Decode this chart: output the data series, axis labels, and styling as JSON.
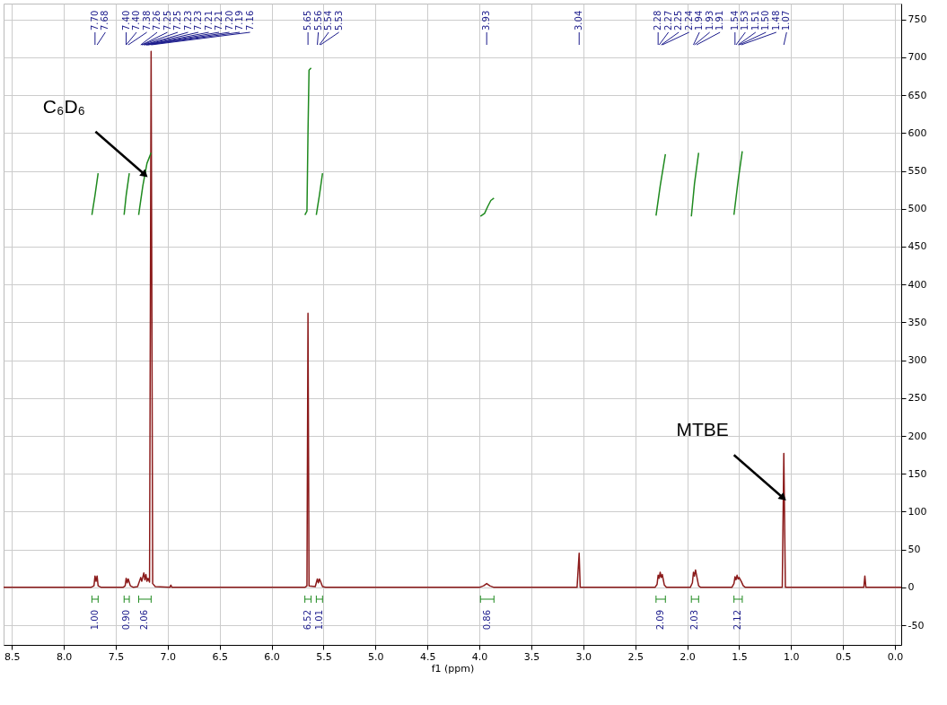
{
  "chart_data": {
    "type": "line",
    "xlabel": "f1 (ppm)",
    "xlim": [
      8.58,
      -0.06
    ],
    "ylim": [
      -76,
      771
    ],
    "xticks": [
      {
        "value": 8.5,
        "label": "8.5"
      },
      {
        "value": 8,
        "label": "8.0"
      },
      {
        "value": 7.5,
        "label": "7.5"
      },
      {
        "value": 7,
        "label": "7.0"
      },
      {
        "value": 6.5,
        "label": "6.5"
      },
      {
        "value": 6,
        "label": "6.0"
      },
      {
        "value": 5.5,
        "label": "5.5"
      },
      {
        "value": 5,
        "label": "5.0"
      },
      {
        "value": 4.5,
        "label": "4.5"
      },
      {
        "value": 4,
        "label": "4.0"
      },
      {
        "value": 3.5,
        "label": "3.5"
      },
      {
        "value": 3,
        "label": "3.0"
      },
      {
        "value": 2.5,
        "label": "2.5"
      },
      {
        "value": 2,
        "label": "2.0"
      },
      {
        "value": 1.5,
        "label": "1.5"
      },
      {
        "value": 1,
        "label": "1.0"
      },
      {
        "value": 0.5,
        "label": "0.5"
      },
      {
        "value": 0,
        "label": "0.0"
      }
    ],
    "yticks": [
      -50,
      0,
      50,
      100,
      150,
      200,
      250,
      300,
      350,
      400,
      450,
      500,
      550,
      600,
      650,
      700,
      750
    ],
    "grid": true,
    "series": [
      {
        "color": "#8b1a1a",
        "x": [
          8.58,
          7.74,
          7.71,
          7.7,
          7.69,
          7.68,
          7.67,
          7.64,
          7.43,
          7.41,
          7.4,
          7.39,
          7.38,
          7.36,
          7.33,
          7.29,
          7.26,
          7.25,
          7.23,
          7.22,
          7.21,
          7.2,
          7.19,
          7.175,
          7.16,
          7.145,
          7.12,
          6.98,
          6.97,
          6.96,
          5.68,
          5.66,
          5.65,
          5.64,
          5.58,
          5.56,
          5.55,
          5.54,
          5.53,
          5.51,
          5.48,
          4.0,
          3.96,
          3.93,
          3.9,
          3.86,
          3.06,
          3.04,
          3.03,
          2.31,
          2.29,
          2.28,
          2.27,
          2.26,
          2.25,
          2.24,
          2.22,
          2.2,
          1.97,
          1.95,
          1.94,
          1.93,
          1.92,
          1.91,
          1.89,
          1.87,
          1.57,
          1.55,
          1.54,
          1.53,
          1.52,
          1.51,
          1.5,
          1.48,
          1.46,
          1.44,
          1.085,
          1.07,
          1.055,
          0.3,
          0.29,
          0.28,
          -0.06
        ],
        "values": [
          0,
          0,
          2,
          15,
          8,
          15,
          2,
          0,
          0,
          2,
          12,
          6,
          11,
          2,
          0,
          1,
          13,
          8,
          19,
          10,
          17,
          8,
          12,
          7,
          708,
          5,
          1,
          0,
          3,
          0,
          0,
          2,
          362,
          2,
          1,
          11,
          6,
          11,
          8,
          1,
          0,
          0,
          2,
          5,
          2,
          0,
          0,
          45,
          0,
          0,
          4,
          16,
          12,
          20,
          13,
          17,
          3,
          0,
          0,
          6,
          20,
          15,
          23,
          16,
          2,
          0,
          0,
          5,
          14,
          10,
          16,
          11,
          13,
          8,
          2,
          0,
          0,
          177,
          0,
          0,
          15,
          0,
          0
        ]
      },
      {
        "color": "#1f8a1f",
        "x": [
          7.73,
          7.7,
          7.67
        ],
        "values": [
          492,
          518,
          547
        ]
      },
      {
        "color": "#1f8a1f",
        "x": [
          7.42,
          7.4,
          7.37
        ],
        "values": [
          492,
          518,
          547
        ]
      },
      {
        "color": "#1f8a1f",
        "x": [
          7.28,
          7.24,
          7.2,
          7.16
        ],
        "values": [
          492,
          530,
          560,
          574
        ]
      },
      {
        "color": "#1f8a1f",
        "x": [
          5.68,
          5.66,
          5.65,
          5.64,
          5.62
        ],
        "values": [
          492,
          497,
          600,
          683,
          686
        ]
      },
      {
        "color": "#1f8a1f",
        "x": [
          5.57,
          5.54,
          5.51
        ],
        "values": [
          492,
          518,
          547
        ]
      },
      {
        "color": "#1f8a1f",
        "x": [
          3.99,
          3.95,
          3.92,
          3.89,
          3.86
        ],
        "values": [
          490,
          494,
          503,
          511,
          514
        ]
      },
      {
        "color": "#1f8a1f",
        "x": [
          2.3,
          2.26,
          2.21
        ],
        "values": [
          491,
          530,
          572
        ]
      },
      {
        "color": "#1f8a1f",
        "x": [
          1.96,
          1.93,
          1.89
        ],
        "values": [
          490,
          533,
          574
        ]
      },
      {
        "color": "#1f8a1f",
        "x": [
          1.55,
          1.51,
          1.47
        ],
        "values": [
          492,
          537,
          576
        ]
      }
    ],
    "annotations": [
      {
        "text": "C₆D₆",
        "x": 7.22,
        "y": 545
      },
      {
        "text": "MTBE",
        "x": 1.075,
        "y": 118
      },
      {
        "text": "7.70",
        "x": 7.7
      },
      {
        "text": "7.68",
        "x": 7.68
      },
      {
        "text": "7.40",
        "x": 7.4
      },
      {
        "text": "7.40",
        "x": 7.4
      },
      {
        "text": "7.38",
        "x": 7.38
      },
      {
        "text": "7.26",
        "x": 7.26
      },
      {
        "text": "7.25",
        "x": 7.25
      },
      {
        "text": "7.25",
        "x": 7.25
      },
      {
        "text": "7.23",
        "x": 7.23
      },
      {
        "text": "7.23",
        "x": 7.23
      },
      {
        "text": "7.21",
        "x": 7.21
      },
      {
        "text": "7.21",
        "x": 7.21
      },
      {
        "text": "7.20",
        "x": 7.2
      },
      {
        "text": "7.19",
        "x": 7.19
      },
      {
        "text": "7.16",
        "x": 7.16
      },
      {
        "text": "5.65",
        "x": 5.65
      },
      {
        "text": "5.56",
        "x": 5.56
      },
      {
        "text": "5.54",
        "x": 5.54
      },
      {
        "text": "5.53",
        "x": 5.53
      },
      {
        "text": "3.93",
        "x": 3.93
      },
      {
        "text": "3.04",
        "x": 3.04
      },
      {
        "text": "2.28",
        "x": 2.28
      },
      {
        "text": "2.27",
        "x": 2.27
      },
      {
        "text": "2.25",
        "x": 2.25
      },
      {
        "text": "2.24",
        "x": 2.24
      },
      {
        "text": "1.94",
        "x": 1.94
      },
      {
        "text": "1.93",
        "x": 1.93
      },
      {
        "text": "1.91",
        "x": 1.91
      },
      {
        "text": "1.54",
        "x": 1.54
      },
      {
        "text": "1.53",
        "x": 1.53
      },
      {
        "text": "1.51",
        "x": 1.51
      },
      {
        "text": "1.50",
        "x": 1.5
      },
      {
        "text": "1.48",
        "x": 1.48
      },
      {
        "text": "1.07",
        "x": 1.07
      },
      "1.00",
      "0.90",
      "2.06",
      "6.52",
      "1.01",
      "0.86",
      "2.09",
      "2.03",
      "2.12"
    ]
  }
}
